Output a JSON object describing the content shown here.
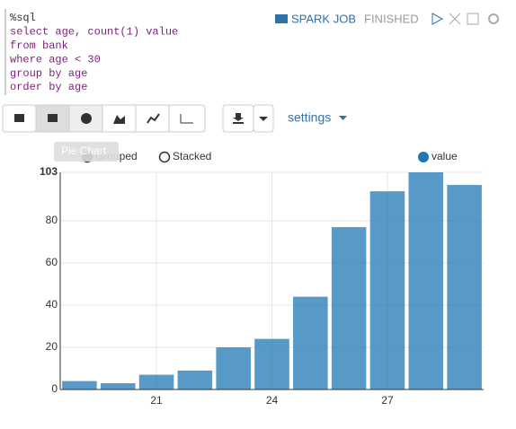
{
  "paragraph": {
    "code": [
      "%sql",
      "select age, count(1) value",
      "from bank",
      "where age < 30",
      "group by age",
      "order by age"
    ],
    "job_link": "SPARK JOB",
    "status": "FINISHED",
    "tooltip": "Pie Chart",
    "settings": "settings"
  },
  "chart_data": {
    "type": "bar",
    "mode_options": [
      "Grouped",
      "Stacked"
    ],
    "categories": [
      null,
      null,
      21,
      null,
      null,
      24,
      null,
      null,
      27,
      null,
      null
    ],
    "series": [
      {
        "name": "value",
        "color": "#1f77b4",
        "values": [
          4,
          3,
          7,
          9,
          20,
          24,
          44,
          77,
          94,
          103,
          97
        ]
      }
    ],
    "ylim": [
      0,
      103
    ],
    "yticks": [
      0,
      20,
      40,
      60,
      80,
      103
    ],
    "grid": true
  }
}
